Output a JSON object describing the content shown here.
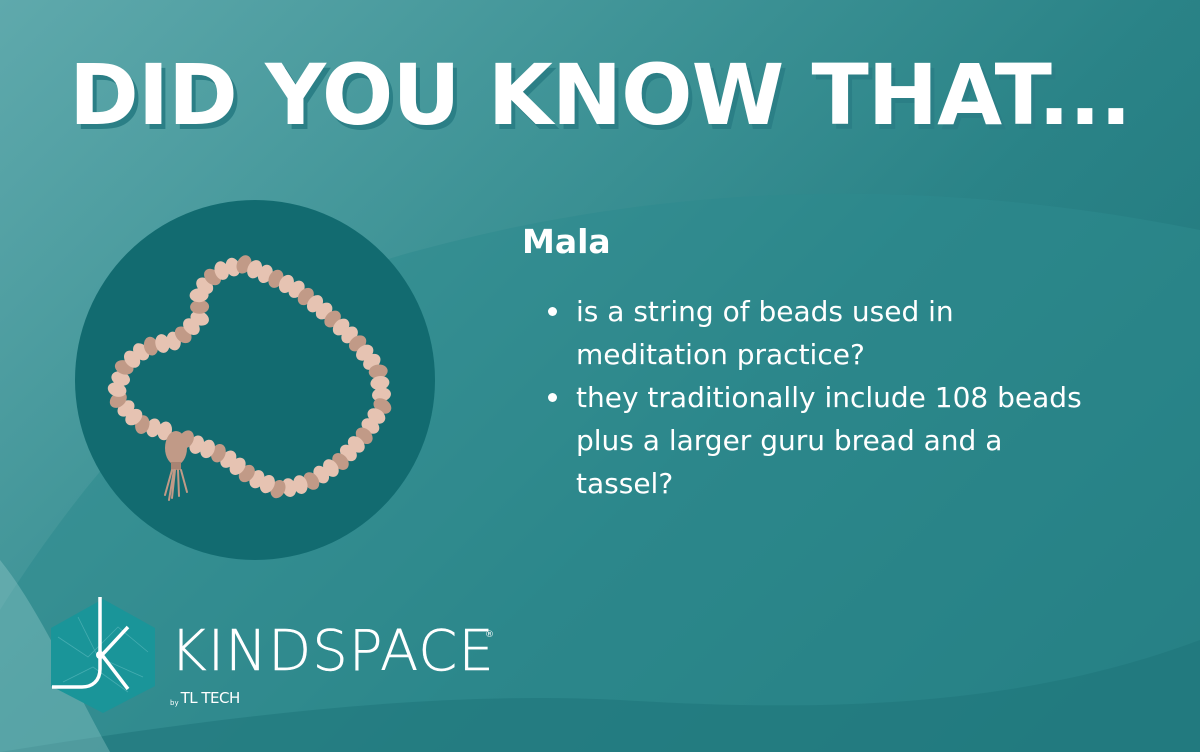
{
  "headline": "DID YOU KNOW THAT...",
  "fact": {
    "title": "Mala",
    "items": [
      "is a string of beads used in meditation practice?",
      "they traditionally include 108 beads plus a larger guru bread and a tassel?"
    ]
  },
  "logo": {
    "brand": "KINDSPACE",
    "registered": "®",
    "by": "by",
    "company": "TL TECH"
  },
  "colors": {
    "bead_light": "#e6c3b2",
    "bead_dark": "#c19a87",
    "circle": "#126b70",
    "headline_shadow": "#2b7f86"
  },
  "icons": {
    "mala": "mala-beads-illustration",
    "logo": "kindspace-hexagon-logo"
  }
}
